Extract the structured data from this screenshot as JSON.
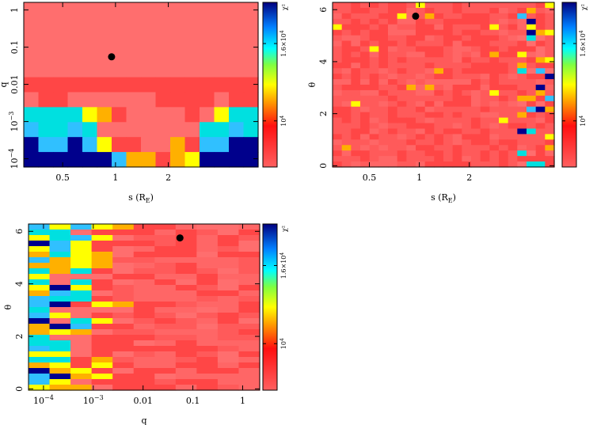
{
  "chart_data": [
    {
      "type": "heatmap",
      "id": "panel-s-q",
      "xlabel": "s (R_E)",
      "ylabel": "q",
      "x_scale": "log",
      "y_scale": "log",
      "xlim": [
        0.3,
        6.5
      ],
      "ylim": [
        6e-05,
        1.6
      ],
      "x_ticks": [
        {
          "v": 0.5,
          "label": "0.5"
        },
        {
          "v": 1,
          "label": "1"
        },
        {
          "v": 2,
          "label": "2"
        }
      ],
      "y_ticks": [
        {
          "v": 1,
          "label": "1"
        },
        {
          "v": 0.1,
          "label": "0.1"
        },
        {
          "v": 0.01,
          "label": "0.01"
        },
        {
          "v": 0.001,
          "label": "10^-3"
        },
        {
          "v": 0.0001,
          "label": "10^-4"
        }
      ],
      "best_fit": {
        "x": 0.95,
        "y": 0.055
      },
      "colorbar": {
        "title": "χ²",
        "labels": [
          {
            "v": 10000,
            "label": "10^4"
          },
          {
            "v": 16000,
            "label": "1.6×10^4"
          }
        ]
      },
      "grid_cols": 16,
      "grid_rows": 11,
      "cells": [
        "3333333333333333",
        "3333333333333333",
        "3333333333333333",
        "3333333333333333",
        "3333333333333333",
        "2222222222222222",
        "3223333332222322",
        "6666542333323566",
        "7667633333336676",
        "8778752233427788",
        "8888887442458888"
      ]
    },
    {
      "type": "heatmap",
      "id": "panel-s-theta",
      "xlabel": "s (R_E)",
      "ylabel": "θ",
      "x_scale": "log",
      "y_scale": "linear",
      "xlim": [
        0.3,
        6.5
      ],
      "ylim": [
        -0.05,
        6.28
      ],
      "x_ticks": [
        {
          "v": 0.5,
          "label": "0.5"
        },
        {
          "v": 1,
          "label": "1"
        },
        {
          "v": 2,
          "label": "2"
        }
      ],
      "y_ticks": [
        {
          "v": 0,
          "label": "0"
        },
        {
          "v": 2,
          "label": "2"
        },
        {
          "v": 4,
          "label": "4"
        },
        {
          "v": 6,
          "label": "6"
        }
      ],
      "best_fit": {
        "x": 0.95,
        "y": 5.75
      },
      "colorbar": {
        "title": "χ²",
        "labels": [
          {
            "v": 10000,
            "label": "10^4"
          },
          {
            "v": 16000,
            "label": "1.6×10^4"
          }
        ]
      },
      "grid_cols": 24,
      "grid_rows": 30
    },
    {
      "type": "heatmap",
      "id": "panel-q-theta",
      "xlabel": "q",
      "ylabel": "θ",
      "x_scale": "log",
      "y_scale": "linear",
      "xlim": [
        5e-05,
        2.2
      ],
      "ylim": [
        -0.05,
        6.28
      ],
      "x_ticks": [
        {
          "v": 0.0001,
          "label": "10^-4"
        },
        {
          "v": 0.001,
          "label": "10^-3"
        },
        {
          "v": 0.01,
          "label": "0.01"
        },
        {
          "v": 0.1,
          "label": "0.1"
        },
        {
          "v": 1,
          "label": "1"
        }
      ],
      "y_ticks": [
        {
          "v": 0,
          "label": "0"
        },
        {
          "v": 2,
          "label": "2"
        },
        {
          "v": 4,
          "label": "4"
        },
        {
          "v": 6,
          "label": "6"
        }
      ],
      "best_fit": {
        "x": 0.055,
        "y": 5.75
      },
      "colorbar": {
        "title": "χ²",
        "labels": [
          {
            "v": 10000,
            "label": "10^4"
          },
          {
            "v": 16000,
            "label": "1.6×10^4"
          }
        ]
      },
      "grid_cols": 11,
      "grid_rows": 30
    }
  ]
}
